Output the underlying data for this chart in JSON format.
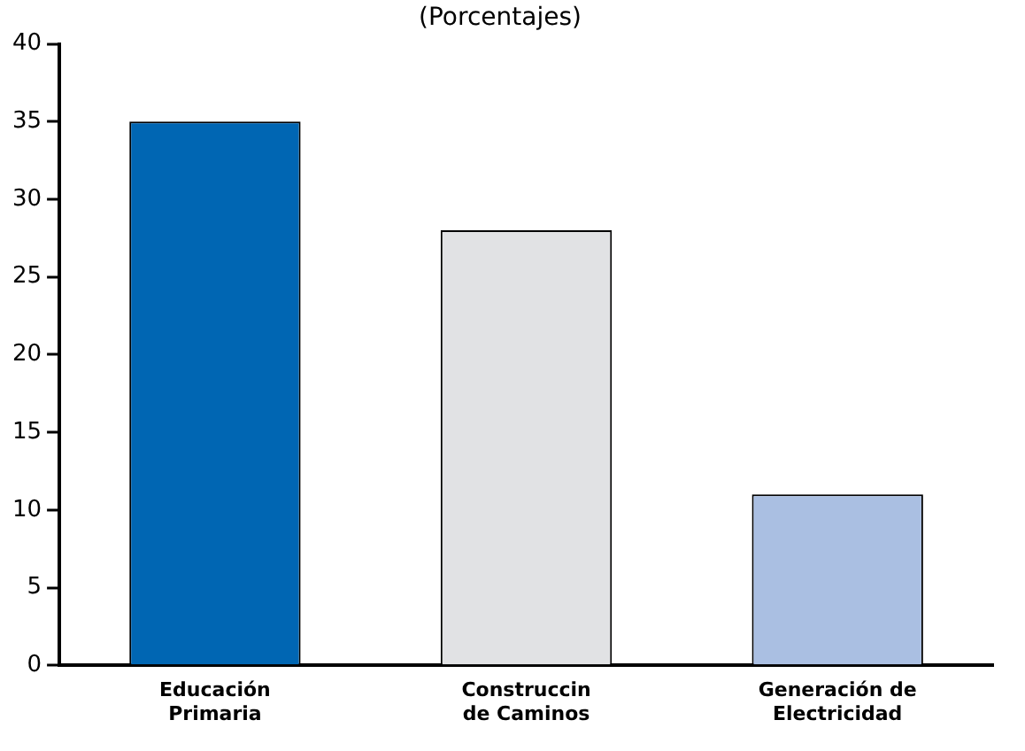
{
  "chart_data": {
    "type": "bar",
    "title": "(Porcentajes)",
    "categories": [
      "Educación\nPrimaria",
      "Construccin\nde Caminos",
      "Generación de\nElectricidad"
    ],
    "values": [
      35,
      28,
      11
    ],
    "colors": [
      "#0066b3",
      "#e1e2e4",
      "#aabfe2"
    ],
    "ylim": [
      0,
      40
    ],
    "yticks": [
      0,
      5,
      10,
      15,
      20,
      25,
      30,
      35,
      40
    ],
    "grid": false,
    "legend": false
  }
}
